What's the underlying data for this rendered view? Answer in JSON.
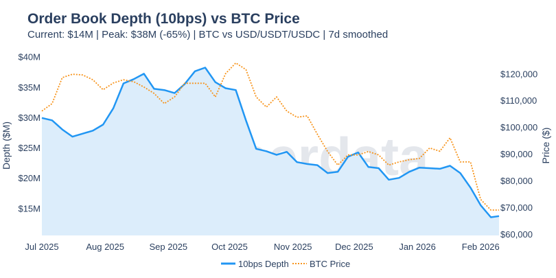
{
  "chart_data": {
    "type": "line",
    "title": "Order Book Depth (10bps) vs BTC Price",
    "subtitle": "Current: $14M | Peak: $38M (-65%) | BTC vs USD/USDT/USDC | 7d smoothed",
    "ylabel": "Depth ($M)",
    "y2label": "Price ($)",
    "watermark": "amberdata",
    "x_ticks": [
      "Jul 2025",
      "Aug 2025",
      "Sep 2025",
      "Oct 2025",
      "Nov 2025",
      "Dec 2025",
      "Jan 2026",
      "Feb 2026"
    ],
    "x_tick_dates": [
      "2025-07-01",
      "2025-08-01",
      "2025-09-01",
      "2025-10-01",
      "2025-11-01",
      "2025-12-01",
      "2026-01-01",
      "2026-02-01"
    ],
    "y_ticks": [
      {
        "v": 15,
        "label": "$15M"
      },
      {
        "v": 20,
        "label": "$20M"
      },
      {
        "v": 25,
        "label": "$25M"
      },
      {
        "v": 30,
        "label": "$30M"
      },
      {
        "v": 35,
        "label": "$35M"
      },
      {
        "v": 40,
        "label": "$40M"
      }
    ],
    "y2_ticks": [
      {
        "v": 60000,
        "label": "$60,000"
      },
      {
        "v": 70000,
        "label": "$70,000"
      },
      {
        "v": 80000,
        "label": "$80,000"
      },
      {
        "v": 90000,
        "label": "$90,000"
      },
      {
        "v": 100000,
        "label": "$100,000"
      },
      {
        "v": 110000,
        "label": "$110,000"
      },
      {
        "v": 120000,
        "label": "$120,000"
      }
    ],
    "xlim": [
      "2025-07-01",
      "2026-02-10"
    ],
    "ylim": [
      10.5,
      40.3
    ],
    "y2lim": [
      59500,
      127000
    ],
    "grid": false,
    "legend_position": "bottom-center",
    "x": [
      "2025-07-01",
      "2025-07-06",
      "2025-07-11",
      "2025-07-16",
      "2025-07-21",
      "2025-07-26",
      "2025-07-31",
      "2025-08-05",
      "2025-08-10",
      "2025-08-15",
      "2025-08-20",
      "2025-08-25",
      "2025-08-30",
      "2025-09-04",
      "2025-09-09",
      "2025-09-14",
      "2025-09-19",
      "2025-09-24",
      "2025-09-29",
      "2025-10-04",
      "2025-10-09",
      "2025-10-14",
      "2025-10-19",
      "2025-10-24",
      "2025-10-29",
      "2025-11-03",
      "2025-11-08",
      "2025-11-13",
      "2025-11-18",
      "2025-11-23",
      "2025-11-28",
      "2025-12-03",
      "2025-12-08",
      "2025-12-13",
      "2025-12-18",
      "2025-12-23",
      "2025-12-28",
      "2026-01-02",
      "2026-01-07",
      "2026-01-12",
      "2026-01-17",
      "2026-01-22",
      "2026-01-27",
      "2026-02-01",
      "2026-02-06",
      "2026-02-10"
    ],
    "series": [
      {
        "name": "10bps Depth",
        "axis": "left",
        "color": "#2196f3",
        "fill": "#dcedfb",
        "style": "solid",
        "values": [
          29.9,
          29.5,
          28.0,
          26.8,
          27.3,
          27.8,
          28.8,
          31.5,
          35.6,
          36.3,
          37.2,
          34.7,
          34.5,
          34.0,
          35.5,
          37.6,
          38.2,
          35.8,
          34.8,
          34.5,
          29.5,
          24.8,
          24.4,
          23.8,
          24.3,
          22.6,
          22.3,
          22.1,
          20.8,
          21.0,
          23.5,
          24.2,
          21.8,
          21.6,
          19.7,
          20.0,
          21.0,
          21.7,
          21.6,
          21.5,
          22.0,
          20.8,
          18.4,
          15.5,
          13.5,
          13.7
        ]
      },
      {
        "name": "BTC Price",
        "axis": "right",
        "color": "#f7931a",
        "style": "dotted",
        "values": [
          106000,
          108800,
          118500,
          119800,
          119500,
          117700,
          114000,
          116500,
          117700,
          117000,
          115000,
          112600,
          108800,
          111300,
          116400,
          116400,
          116400,
          111300,
          120000,
          124000,
          121500,
          111300,
          107500,
          111300,
          106000,
          103700,
          104200,
          97300,
          90900,
          85800,
          89600,
          89600,
          90900,
          89600,
          85800,
          87000,
          87800,
          88300,
          92200,
          91000,
          96000,
          87000,
          87000,
          73000,
          69000,
          69000
        ]
      }
    ]
  }
}
